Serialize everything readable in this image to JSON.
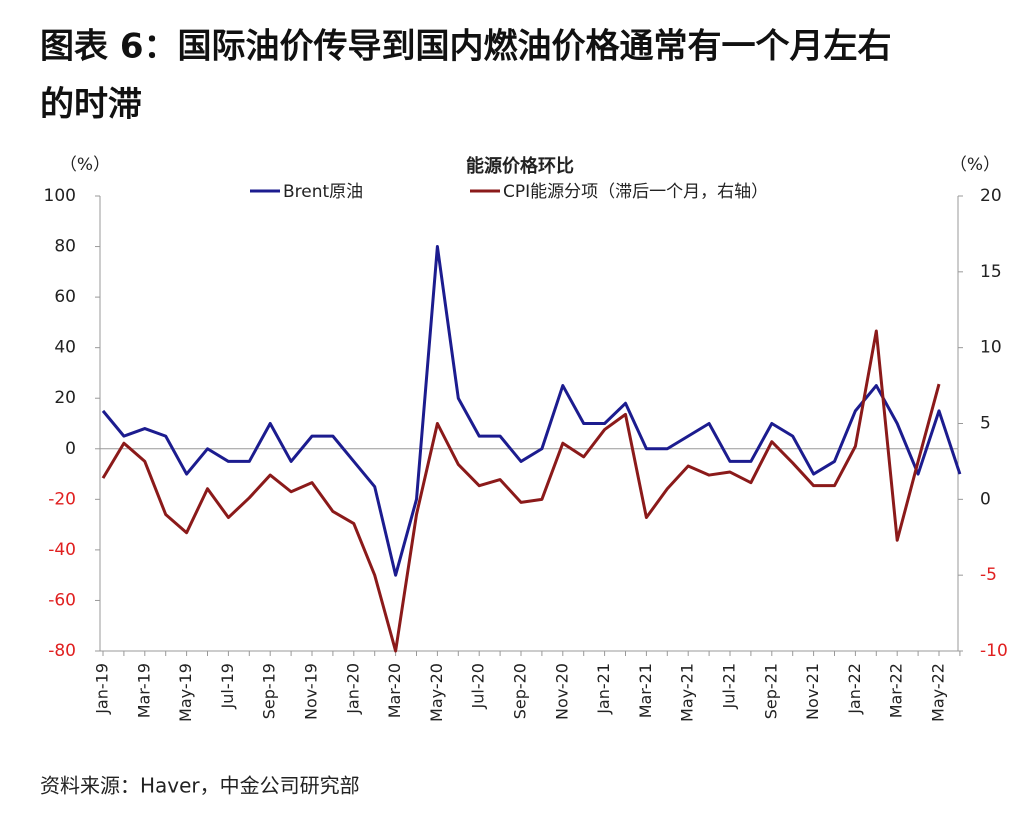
{
  "chart_data": {
    "type": "line",
    "title": [
      "图表 6：国际油价传导到国内燃油价格通常有一个月左右",
      "的时滞"
    ],
    "subtitle": "能源价格环比",
    "y_unit": "（%）",
    "y2_unit": "（%）",
    "source": "资料来源：Haver，中金公司研究部",
    "categories": [
      "Jan-19",
      null,
      "Mar-19",
      null,
      "May-19",
      null,
      "Jul-19",
      null,
      "Sep-19",
      null,
      "Nov-19",
      null,
      "Jan-20",
      null,
      "Mar-20",
      null,
      "May-20",
      null,
      "Jul-20",
      null,
      "Sep-20",
      null,
      "Nov-20",
      null,
      "Jan-21",
      null,
      "Mar-21",
      null,
      "May-21",
      null,
      "Jul-21",
      null,
      "Sep-21",
      null,
      "Nov-21",
      null,
      "Jan-22",
      null,
      "Mar-22",
      null,
      "May-22",
      null
    ],
    "series": [
      {
        "name": "Brent原油",
        "color": "#1c1c8f",
        "values": [
          15,
          5,
          8,
          5,
          -10,
          0,
          -5,
          -5,
          10,
          -5,
          5,
          5,
          -5,
          -15,
          -50,
          -20,
          80,
          20,
          5,
          5,
          -5,
          0,
          25,
          10,
          10,
          18,
          0,
          0,
          5,
          10,
          -5,
          -5,
          10,
          5,
          -10,
          -5,
          15,
          25,
          10,
          -10,
          15,
          -10
        ]
      },
      {
        "name": "CPI能源分项（滞后一个月，右轴）",
        "color": "#8b1a1a",
        "axis": "y2",
        "values": [
          1.4,
          3.7,
          2.5,
          -1.0,
          -2.2,
          0.7,
          -1.2,
          0.1,
          1.6,
          0.5,
          1.1,
          -0.8,
          -1.6,
          -5.0,
          -10.0,
          -1.0,
          5.0,
          2.3,
          0.9,
          1.3,
          -0.2,
          0.0,
          3.7,
          2.8,
          4.6,
          5.6,
          -1.2,
          0.7,
          2.2,
          1.6,
          1.8,
          1.1,
          3.8,
          2.4,
          0.9,
          0.9,
          3.5,
          11.1,
          -2.7,
          2.5,
          7.6,
          null
        ]
      }
    ],
    "ylim": [
      -80,
      100
    ],
    "yticks": [
      -80,
      -60,
      -40,
      -20,
      0,
      20,
      40,
      60,
      80,
      100
    ],
    "y2lim": [
      -10,
      20
    ],
    "y2ticks": [
      -10,
      -5,
      0,
      5,
      10,
      15,
      20
    ],
    "negative_tick_color": "#e02020",
    "legend": "top"
  }
}
